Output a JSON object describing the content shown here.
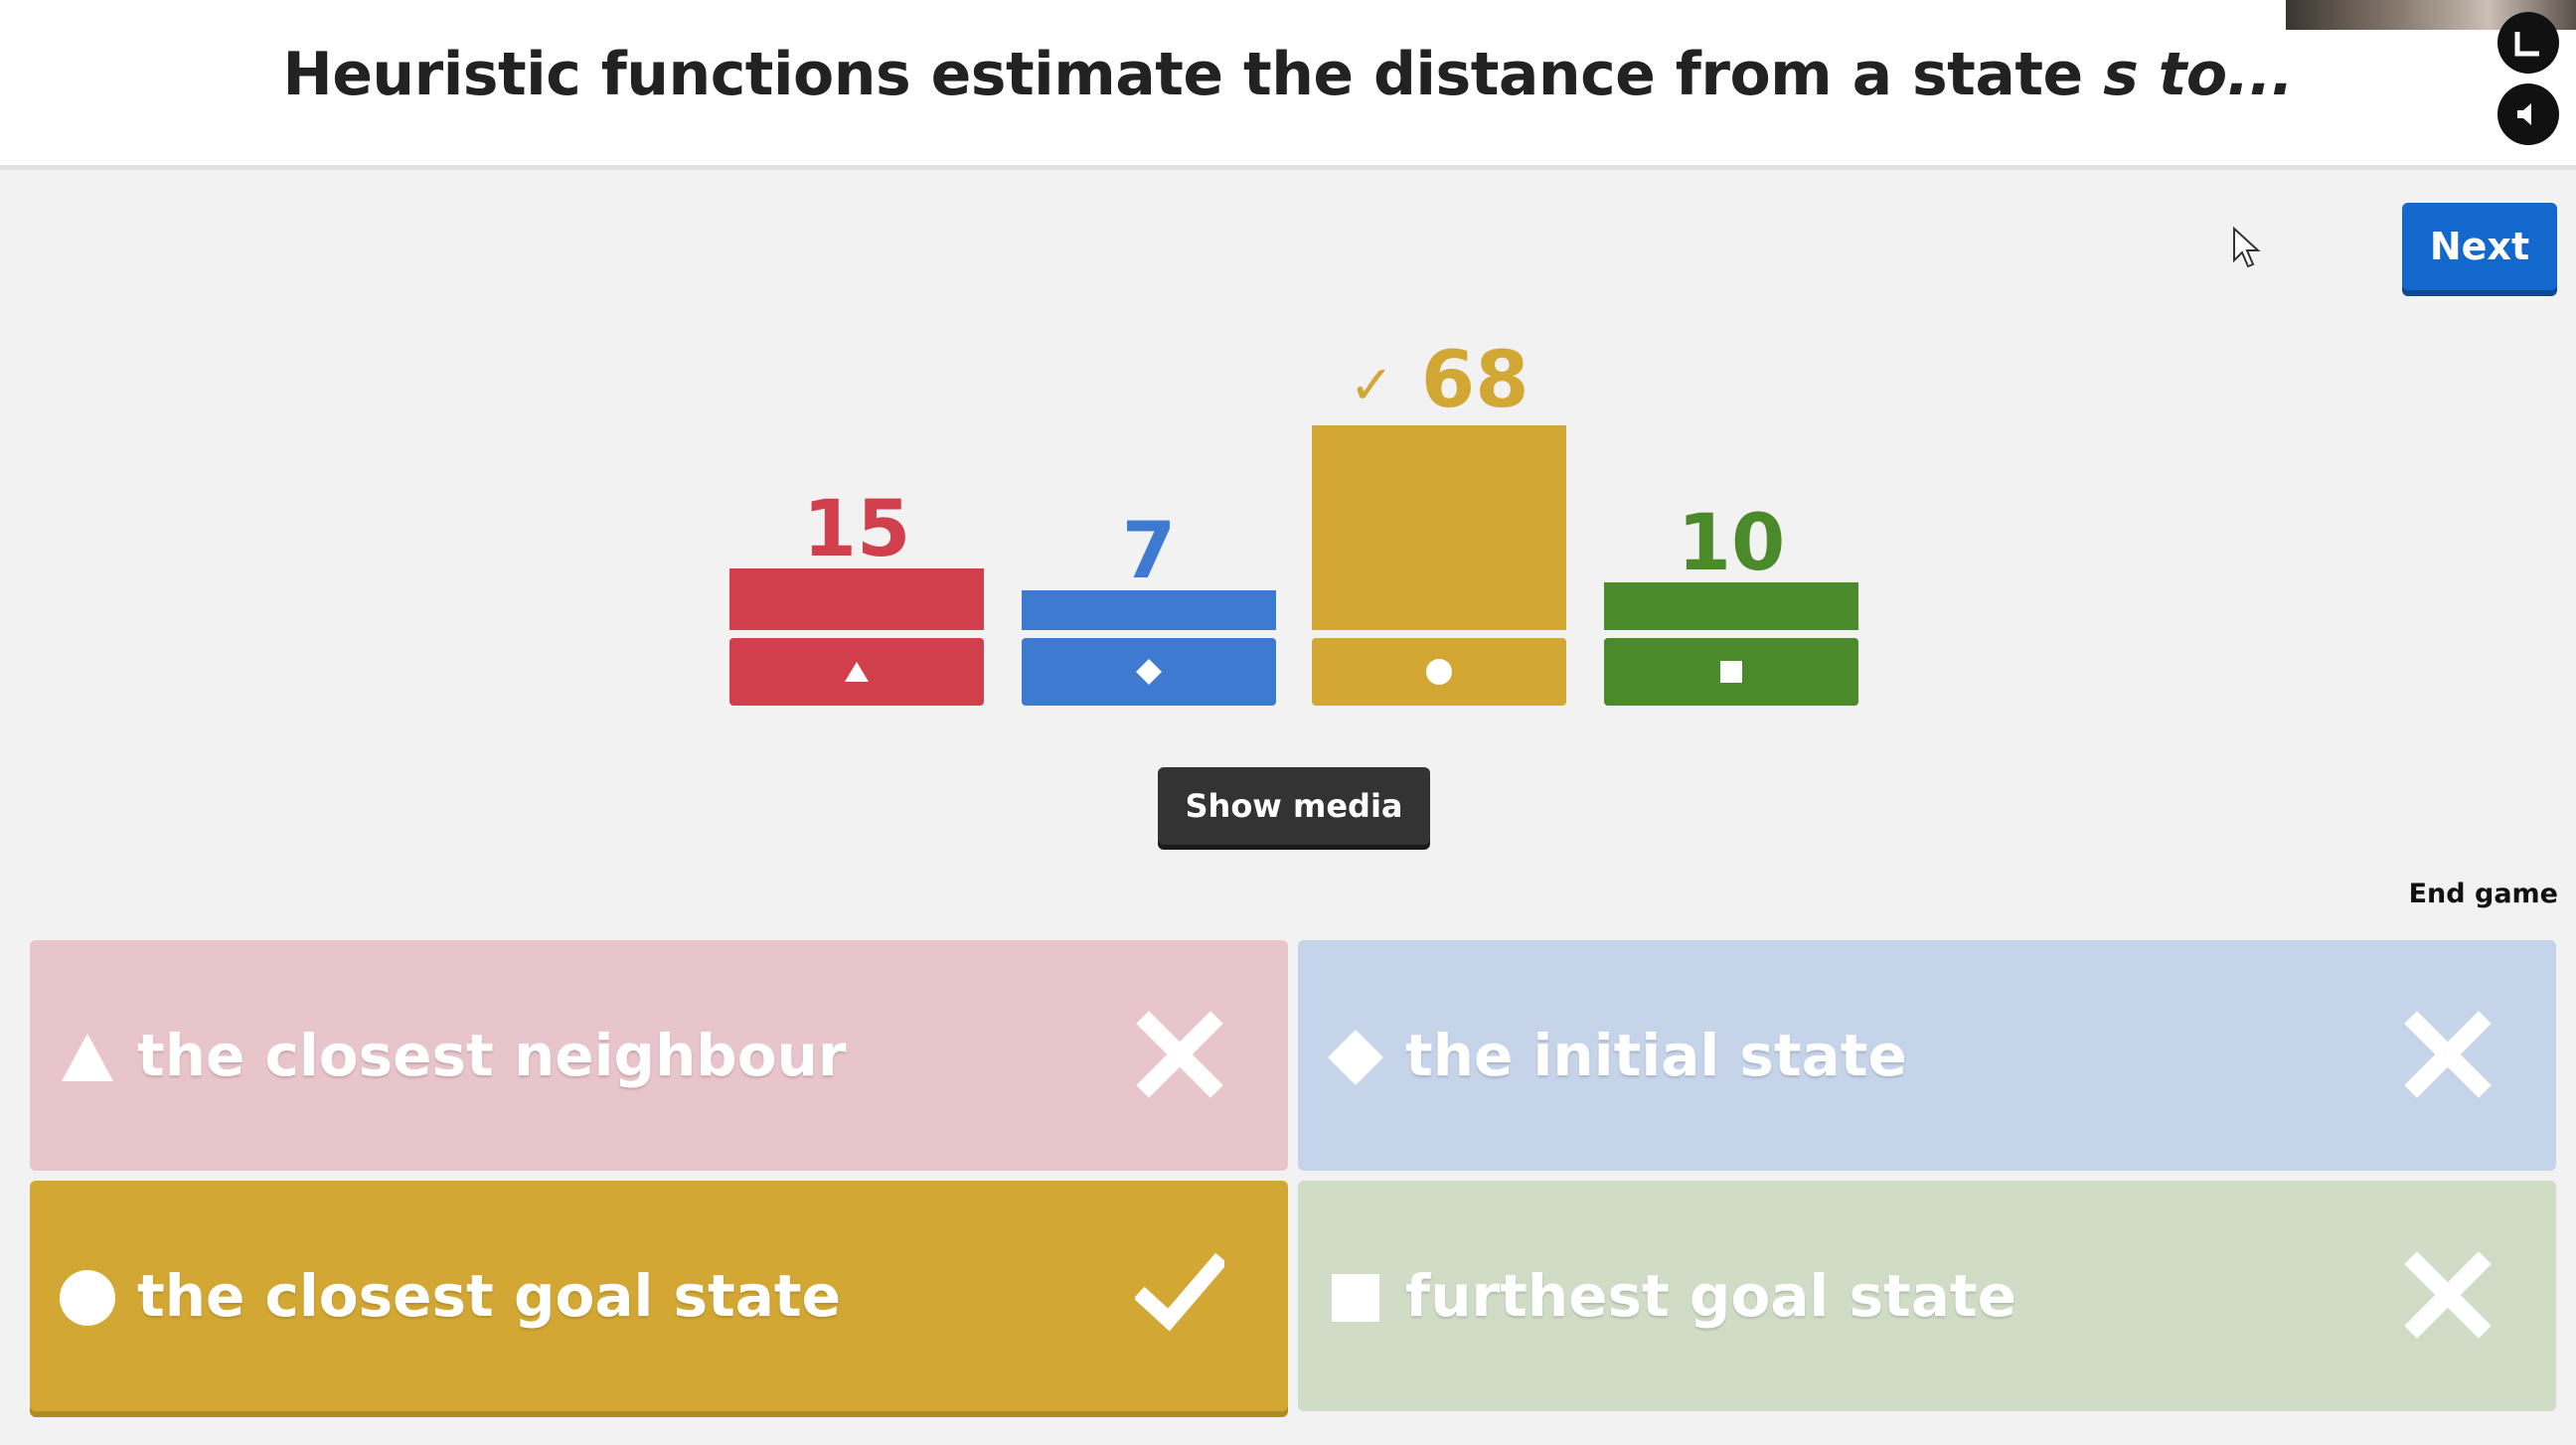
{
  "question": {
    "text_main": "Heuristic functions estimate the distance from a state ",
    "text_italic": "s to..."
  },
  "controls": {
    "next_label": "Next",
    "show_media_label": "Show media",
    "end_game_label": "End game"
  },
  "results": [
    {
      "count": "15",
      "shape": "triangle-icon",
      "color": "#d13f4d",
      "correct": false
    },
    {
      "count": "7",
      "shape": "diamond-icon",
      "color": "#3e7bd0",
      "correct": false
    },
    {
      "count": "68",
      "shape": "circle-icon",
      "color": "#d3a733",
      "correct": true
    },
    {
      "count": "10",
      "shape": "square-icon",
      "color": "#4a8a2a",
      "correct": false
    }
  ],
  "answers": [
    {
      "label": "the closest neighbour",
      "shape": "triangle-icon",
      "correct": false,
      "color": "#e8c4cb"
    },
    {
      "label": "the initial state",
      "shape": "diamond-icon",
      "correct": false,
      "color": "#c6d4ea"
    },
    {
      "label": "the closest goal state",
      "shape": "circle-icon",
      "correct": true,
      "color": "#d3a733"
    },
    {
      "label": "furthest goal state",
      "shape": "square-icon",
      "correct": false,
      "color": "#d0dcc6"
    }
  ]
}
